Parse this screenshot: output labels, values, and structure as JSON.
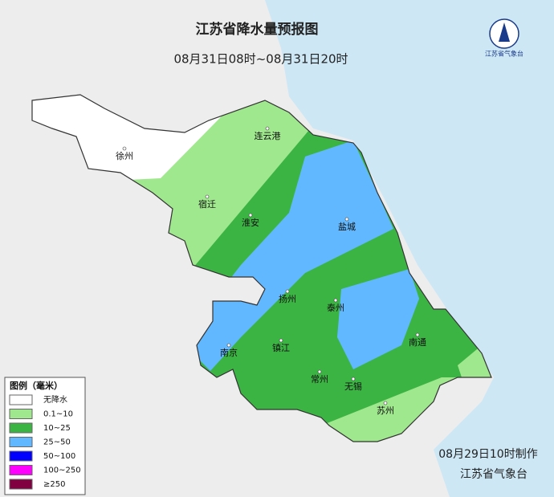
{
  "header": {
    "title": "江苏省降水量预报图",
    "subtitle": "08月31日08时~08月31日20时"
  },
  "logo": {
    "text": "江苏省气象台"
  },
  "legend": {
    "title": "图例（毫米）",
    "items": [
      {
        "label": "无降水",
        "color": "#ffffff"
      },
      {
        "label": "0.1~10",
        "color": "#a0e88e"
      },
      {
        "label": "10~25",
        "color": "#3cb444"
      },
      {
        "label": "25~50",
        "color": "#62b8ff"
      },
      {
        "label": "50~100",
        "color": "#0000fe"
      },
      {
        "label": "100~250",
        "color": "#fe00fe"
      },
      {
        "label": "≥250",
        "color": "#800040"
      }
    ]
  },
  "cities": [
    {
      "name": "徐州"
    },
    {
      "name": "连云港"
    },
    {
      "name": "宿迁"
    },
    {
      "name": "淮安"
    },
    {
      "name": "盐城"
    },
    {
      "name": "扬州"
    },
    {
      "name": "泰州"
    },
    {
      "name": "南京"
    },
    {
      "name": "镇江"
    },
    {
      "name": "南通"
    },
    {
      "name": "常州"
    },
    {
      "name": "无锡"
    },
    {
      "name": "苏州"
    }
  ],
  "footer": {
    "issued": "08月29日10时制作",
    "agency": "江苏省气象台"
  }
}
